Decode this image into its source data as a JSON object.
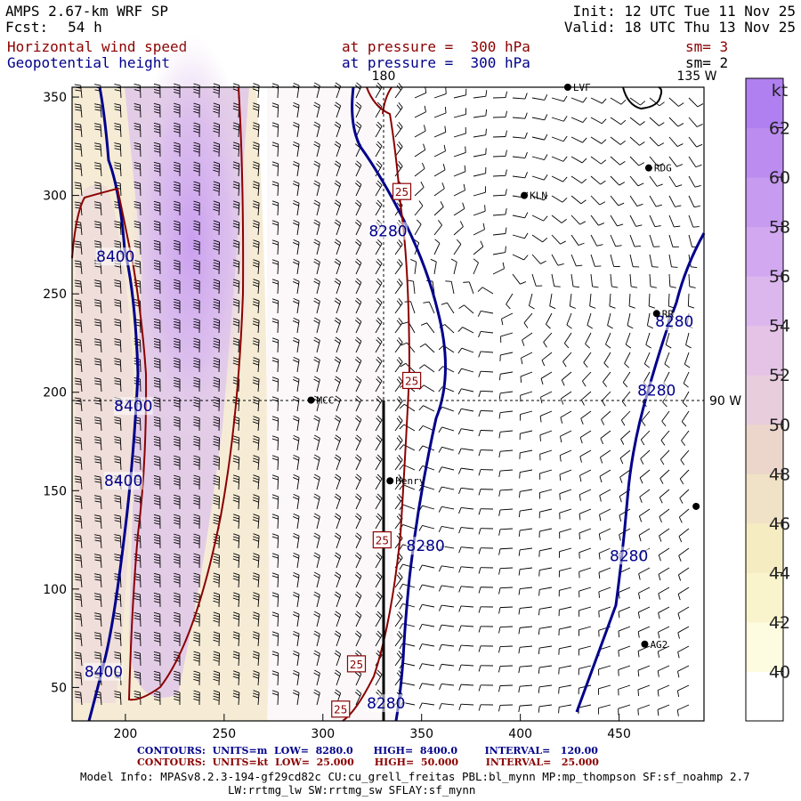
{
  "header": {
    "model": "AMPS 2.67-km WRF SP",
    "init_label": "Init:",
    "init_value": "12 UTC Tue 11 Nov 25",
    "fcst_label": "Fcst:",
    "fcst_value": "54 h",
    "valid_label": "Valid:",
    "valid_value": "18 UTC Thu 13 Nov 25",
    "field1": "Horizontal wind speed",
    "field1_level": "at pressure =  300 hPa",
    "field1_sm": "sm= 3",
    "field2": "Geopotential height",
    "field2_level": "at pressure =  300 hPa",
    "field2_sm": "sm= 2"
  },
  "footer": {
    "row1": {
      "label": "CONTOURS:",
      "units": "UNITS=m",
      "low": "LOW=  8280.0",
      "high": "HIGH=  8400.0",
      "interval": "INTERVAL=   120.00"
    },
    "row2": {
      "label": "CONTOURS:",
      "units": "UNITS=kt",
      "low": "LOW=  25.000",
      "high": "HIGH=  50.000",
      "interval": "INTERVAL=   25.000"
    },
    "info1": "Model Info: MPASv8.2.3-194-gf29cd82c CU:cu_grell_freitas PBL:bl_mynn MP:mp_thompson SF:sf_noahmp 2.7",
    "info2": "LW:rrtmg_lw SW:rrtmg_sw SFLAY:sf_mynn"
  },
  "colors": {
    "height_contour": "#00008b",
    "speed_contour": "#8b0000",
    "barb": "#000000",
    "colorbar": [
      "#ffffff",
      "#fdfbe0",
      "#f9f4cc",
      "#f5ecc2",
      "#f0e2c6",
      "#ecd6cc",
      "#e8cddc",
      "#e4c3e6",
      "#dcb7ee",
      "#d2a9f0",
      "#c79bf0",
      "#bc8cf0",
      "#b080f0"
    ]
  },
  "chart_data": {
    "type": "meteorological_map",
    "title": "Horizontal wind speed and Geopotential height at 300 hPa",
    "x_ticks": [
      200,
      250,
      300,
      350,
      400,
      450
    ],
    "y_ticks": [
      50,
      100,
      150,
      200,
      250,
      300,
      350
    ],
    "xlim": [
      173,
      493
    ],
    "ylim": [
      33,
      355
    ],
    "meridian_labels": [
      "180",
      "135 W",
      "90 W"
    ],
    "colorbar": {
      "unit": "kt",
      "ticks": [
        40,
        42,
        44,
        46,
        48,
        50,
        52,
        54,
        56,
        58,
        60,
        62
      ],
      "range": [
        38,
        64
      ]
    },
    "stations": [
      {
        "name": "LVF",
        "x": 424,
        "y": 355
      },
      {
        "name": "RDG",
        "x": 465,
        "y": 314
      },
      {
        "name": "KLN",
        "x": 402,
        "y": 300
      },
      {
        "name": "RR",
        "x": 469,
        "y": 240
      },
      {
        "name": "MCC",
        "x": 294,
        "y": 196
      },
      {
        "name": "Henry",
        "x": 334,
        "y": 155
      },
      {
        "name": "",
        "x": 489,
        "y": 142
      },
      {
        "name": "AG2",
        "x": 463,
        "y": 72
      }
    ],
    "height_contour_labels": [
      {
        "text": "8400",
        "x": 195,
        "y": 269
      },
      {
        "text": "8400",
        "x": 204,
        "y": 193
      },
      {
        "text": "8400",
        "x": 199,
        "y": 155
      },
      {
        "text": "8400",
        "x": 189,
        "y": 58
      },
      {
        "text": "8280",
        "x": 333,
        "y": 282
      },
      {
        "text": "8280",
        "x": 478,
        "y": 236
      },
      {
        "text": "8280",
        "x": 469,
        "y": 201
      },
      {
        "text": "8280",
        "x": 352,
        "y": 122
      },
      {
        "text": "8280",
        "x": 455,
        "y": 117
      },
      {
        "text": "8280",
        "x": 332,
        "y": 42
      }
    ],
    "speed_contour_labels": [
      {
        "text": "25",
        "x": 340,
        "y": 302
      },
      {
        "text": "25",
        "x": 345,
        "y": 206
      },
      {
        "text": "25",
        "x": 330,
        "y": 125
      },
      {
        "text": "25",
        "x": 317,
        "y": 62
      },
      {
        "text": "25",
        "x": 309,
        "y": 39
      }
    ],
    "notes": "Wind speed shaded (kt), 300 hPa geopotential height (m) blue contours, 25-kt isotachs red contours, wind barbs."
  }
}
